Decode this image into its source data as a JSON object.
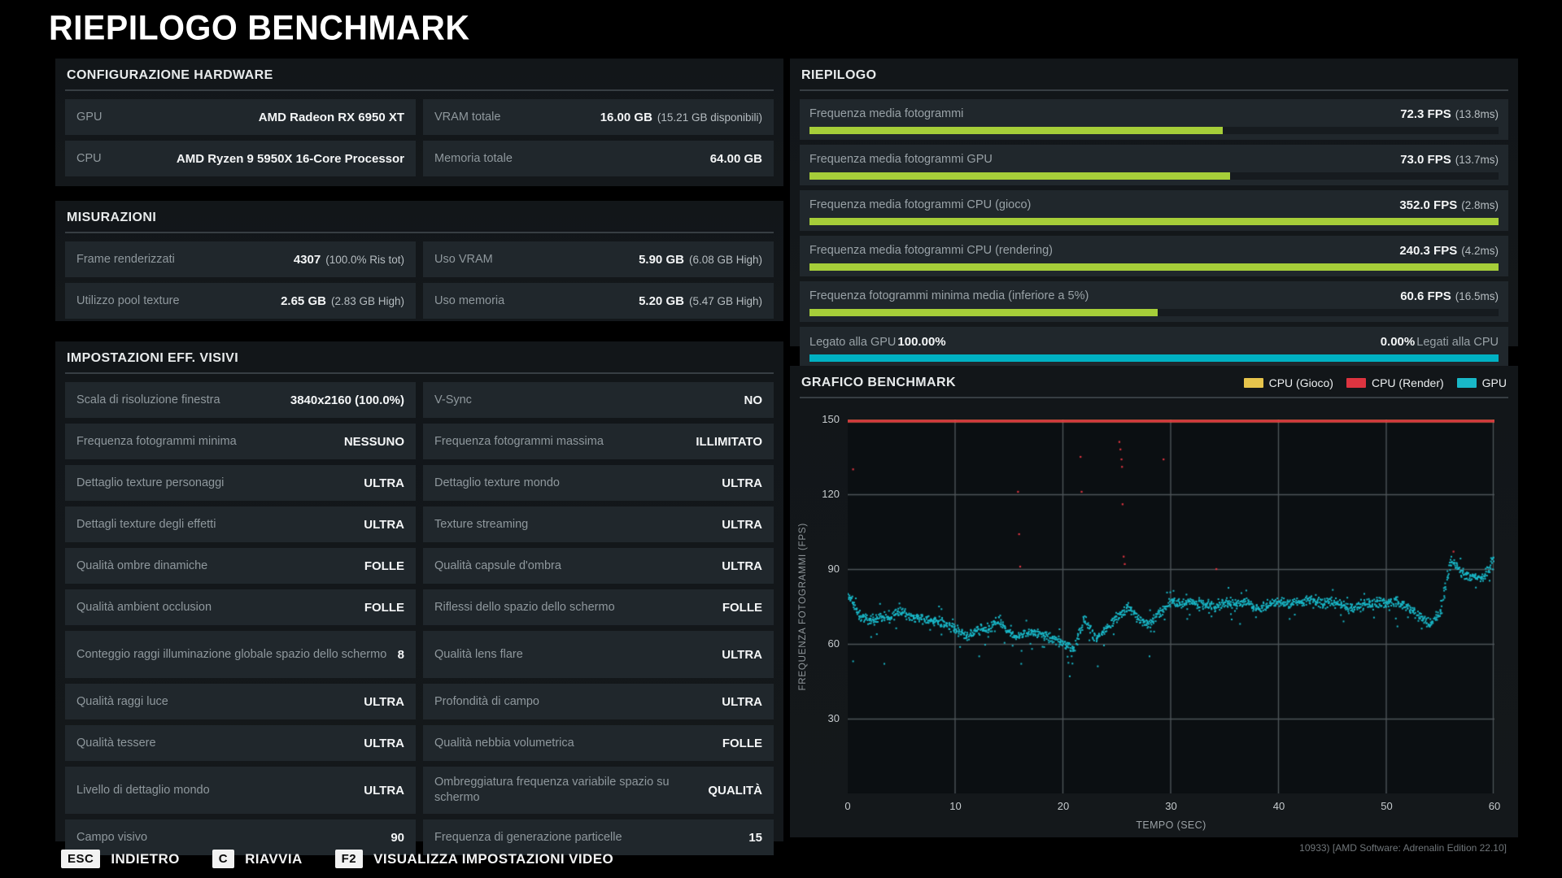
{
  "title": "RIEPILOGO BENCHMARK",
  "panels": {
    "hardware": {
      "title": "CONFIGURAZIONE HARDWARE",
      "rows": [
        {
          "cells": [
            {
              "label": "GPU",
              "value": "AMD Radeon RX 6950 XT",
              "note": ""
            },
            {
              "label": "VRAM totale",
              "value": "16.00 GB",
              "note": "(15.21 GB disponibili)"
            }
          ]
        },
        {
          "cells": [
            {
              "label": "CPU",
              "value": "AMD Ryzen 9 5950X 16-Core Processor",
              "note": ""
            },
            {
              "label": "Memoria totale",
              "value": "64.00 GB",
              "note": ""
            }
          ]
        }
      ]
    },
    "measurements": {
      "title": "MISURAZIONI",
      "rows": [
        {
          "cells": [
            {
              "label": "Frame renderizzati",
              "value": "4307",
              "note": "(100.0% Ris tot)"
            },
            {
              "label": "Uso VRAM",
              "value": "5.90 GB",
              "note": "(6.08 GB High)"
            }
          ]
        },
        {
          "cells": [
            {
              "label": "Utilizzo pool texture",
              "value": "2.65 GB",
              "note": "(2.83 GB High)"
            },
            {
              "label": "Uso memoria",
              "value": "5.20 GB",
              "note": "(5.47 GB High)"
            }
          ]
        }
      ]
    },
    "settings": {
      "title": "IMPOSTAZIONI EFF. VISIVI",
      "rows": [
        {
          "cells": [
            {
              "label": "Scala di risoluzione finestra",
              "value": "3840x2160 (100.0%)"
            },
            {
              "label": "V-Sync",
              "value": "NO"
            }
          ]
        },
        {
          "cells": [
            {
              "label": "Frequenza fotogrammi minima",
              "value": "NESSUNO"
            },
            {
              "label": "Frequenza fotogrammi massima",
              "value": "ILLIMITATO"
            }
          ]
        },
        {
          "cells": [
            {
              "label": "Dettaglio texture personaggi",
              "value": "ULTRA"
            },
            {
              "label": "Dettaglio texture mondo",
              "value": "ULTRA"
            }
          ]
        },
        {
          "cells": [
            {
              "label": "Dettagli texture degli effetti",
              "value": "ULTRA"
            },
            {
              "label": "Texture streaming",
              "value": "ULTRA"
            }
          ]
        },
        {
          "cells": [
            {
              "label": "Qualità ombre dinamiche",
              "value": "FOLLE"
            },
            {
              "label": "Qualità capsule d'ombra",
              "value": "ULTRA"
            }
          ]
        },
        {
          "cells": [
            {
              "label": "Qualità ambient occlusion",
              "value": "FOLLE"
            },
            {
              "label": "Riflessi dello spazio dello schermo",
              "value": "FOLLE"
            }
          ]
        },
        {
          "cells": [
            {
              "label": "Conteggio raggi illuminazione globale spazio dello schermo",
              "value": "8"
            },
            {
              "label": "Qualità lens flare",
              "value": "ULTRA"
            }
          ]
        },
        {
          "cells": [
            {
              "label": "Qualità raggi luce",
              "value": "ULTRA"
            },
            {
              "label": "Profondità di campo",
              "value": "ULTRA"
            }
          ]
        },
        {
          "cells": [
            {
              "label": "Qualità tessere",
              "value": "ULTRA"
            },
            {
              "label": "Qualità nebbia volumetrica",
              "value": "FOLLE"
            }
          ]
        },
        {
          "cells": [
            {
              "label": "Livello di dettaglio mondo",
              "value": "ULTRA"
            },
            {
              "label": "Ombreggiatura frequenza variabile spazio su schermo",
              "value": "QUALITÀ"
            }
          ]
        },
        {
          "cells": [
            {
              "label": "Campo visivo",
              "value": "90"
            },
            {
              "label": "Frequenza di generazione particelle",
              "value": "15"
            }
          ]
        }
      ]
    },
    "summary": {
      "title": "RIEPILOGO",
      "rows": [
        {
          "label": "Frequenza media fotogrammi",
          "value": "72.3 FPS",
          "note": "(13.8ms)",
          "bar_pct": 60,
          "bar_color": "#a6ce39"
        },
        {
          "label": "Frequenza media fotogrammi GPU",
          "value": "73.0 FPS",
          "note": "(13.7ms)",
          "bar_pct": 61,
          "bar_color": "#a6ce39"
        },
        {
          "label": "Frequenza media fotogrammi CPU (gioco)",
          "value": "352.0 FPS",
          "note": "(2.8ms)",
          "bar_pct": 100,
          "bar_color": "#a6ce39"
        },
        {
          "label": "Frequenza media fotogrammi CPU (rendering)",
          "value": "240.3 FPS",
          "note": "(4.2ms)",
          "bar_pct": 100,
          "bar_color": "#a6ce39"
        },
        {
          "label": "Frequenza fotogrammi minima media (inferiore a 5%)",
          "value": "60.6 FPS",
          "note": "(16.5ms)",
          "bar_pct": 50.5,
          "bar_color": "#a6ce39"
        }
      ],
      "bound_row": {
        "left_label": "Legato alla GPU",
        "left_value": "100.00%",
        "right_value": "0.00%",
        "right_label": "Legati alla CPU",
        "bar_pct": 100,
        "bar_color": "#00b1c3"
      }
    },
    "chart": {
      "title": "GRAFICO BENCHMARK",
      "legend": [
        {
          "label": "CPU (Gioco)",
          "color": "#e6c44c"
        },
        {
          "label": "CPU (Render)",
          "color": "#dd3440"
        },
        {
          "label": "GPU",
          "color": "#19b8c8"
        }
      ]
    }
  },
  "chart_data": {
    "type": "scatter",
    "title": "GRAFICO BENCHMARK",
    "xlabel": "TEMPO (SEC)",
    "ylabel": "FREQUENZA FOTOGRAMMI (FPS)",
    "xlim": [
      0,
      60
    ],
    "ylim": [
      0,
      150
    ],
    "xticks": [
      0,
      10,
      20,
      30,
      40,
      50,
      60
    ],
    "yticks": [
      150,
      120,
      90,
      60,
      30
    ],
    "grid": true,
    "legend_position": "top-right",
    "series": [
      {
        "name": "CPU (Gioco)",
        "color": "#e6c44c",
        "render": "line_clipped_at_top",
        "clip_value": 150,
        "avg_fps": 352.0
      },
      {
        "name": "CPU (Render)",
        "color": "#dd3440",
        "render": "line_clipped_at_top",
        "clip_value": 150,
        "avg_fps": 240.3,
        "outlier_points": [
          [
            0.5,
            130
          ],
          [
            15.8,
            121
          ],
          [
            15.9,
            104
          ],
          [
            16.0,
            91
          ],
          [
            21.6,
            135
          ],
          [
            21.7,
            121
          ],
          [
            25.2,
            141
          ],
          [
            25.3,
            138
          ],
          [
            25.4,
            134
          ],
          [
            25.45,
            131
          ],
          [
            25.5,
            116
          ],
          [
            25.6,
            95
          ],
          [
            25.7,
            92
          ],
          [
            29.3,
            134
          ],
          [
            34.2,
            90
          ],
          [
            56.2,
            97
          ]
        ]
      },
      {
        "name": "GPU",
        "color": "#19b8c8",
        "render": "scatter_band",
        "avg_fps": 73.0,
        "fps_per_second": [
          80,
          72,
          69,
          71,
          70,
          73,
          71,
          70,
          70,
          68,
          66,
          63,
          66,
          65,
          70,
          64,
          63,
          65,
          64,
          62,
          60,
          58,
          70,
          62,
          66,
          71,
          75,
          70,
          68,
          73,
          77,
          76,
          77,
          76,
          75,
          77,
          76,
          77,
          74,
          76,
          77,
          76,
          77,
          78,
          76,
          77,
          75,
          74,
          76,
          77,
          76,
          77,
          75,
          71,
          68,
          73,
          94,
          88,
          87,
          86,
          95
        ],
        "outlier_points": [
          [
            0.5,
            53
          ],
          [
            3.4,
            52
          ],
          [
            12.2,
            55
          ],
          [
            16.1,
            52
          ],
          [
            20.6,
            47
          ],
          [
            23.2,
            51
          ],
          [
            28.0,
            55
          ],
          [
            31.5,
            70
          ],
          [
            36.4,
            68
          ],
          [
            41.0,
            70
          ],
          [
            46.0,
            69
          ],
          [
            51.0,
            67
          ]
        ]
      }
    ]
  },
  "footer": {
    "hints": [
      {
        "key": "ESC",
        "label": "INDIETRO"
      },
      {
        "key": "C",
        "label": "RIAVVIA"
      },
      {
        "key": "F2",
        "label": "VISUALIZZA IMPOSTAZIONI VIDEO"
      }
    ],
    "version": "10933) [AMD Software: Adrenalin Edition 22.10]"
  }
}
